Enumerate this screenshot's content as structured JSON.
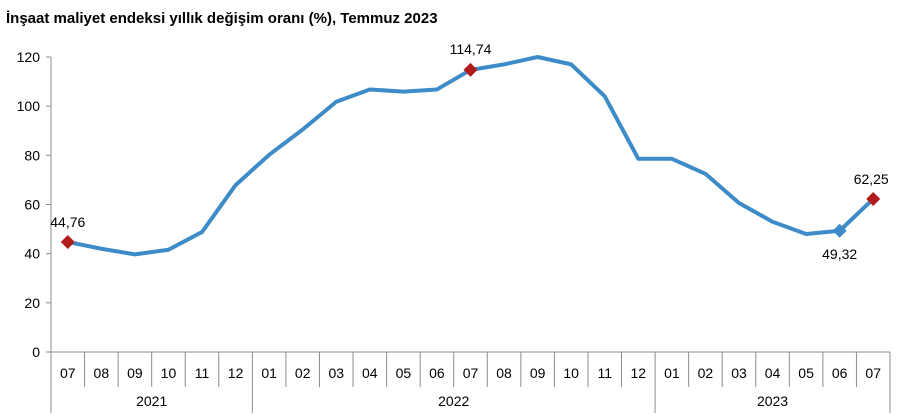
{
  "chart_data": {
    "type": "line",
    "title": "İnşaat maliyet endeksi yıllık değişim oranı (%), Temmuz 2023",
    "xlabel": "",
    "ylabel": "",
    "ylim": [
      0,
      120
    ],
    "yticks": [
      0,
      20,
      40,
      60,
      80,
      100,
      120
    ],
    "grid": false,
    "categories": [
      "07",
      "08",
      "09",
      "10",
      "11",
      "12",
      "01",
      "02",
      "03",
      "04",
      "05",
      "06",
      "07",
      "08",
      "09",
      "10",
      "11",
      "12",
      "01",
      "02",
      "03",
      "04",
      "05",
      "06",
      "07"
    ],
    "year_groups": [
      {
        "label": "2021",
        "count": 6
      },
      {
        "label": "2022",
        "count": 12
      },
      {
        "label": "2023",
        "count": 7
      }
    ],
    "series": [
      {
        "values": [
          44.76,
          42,
          39.7,
          41.6,
          48.8,
          67.9,
          80.2,
          90.5,
          101.8,
          106.8,
          105.9,
          106.8,
          114.74,
          117,
          120,
          117,
          104,
          78.6,
          78.6,
          72.5,
          60.6,
          53,
          48,
          49.32,
          62.25
        ],
        "color": "#3d8cc8"
      }
    ],
    "annotations": [
      {
        "index": 0,
        "label": "44,76",
        "color": "#b01c1c"
      },
      {
        "index": 12,
        "label": "114,74",
        "color": "#b01c1c"
      },
      {
        "index": 23,
        "label": "49,32",
        "color": "#3d8cc8"
      },
      {
        "index": 24,
        "label": "62,25",
        "color": "#b01c1c"
      }
    ]
  }
}
